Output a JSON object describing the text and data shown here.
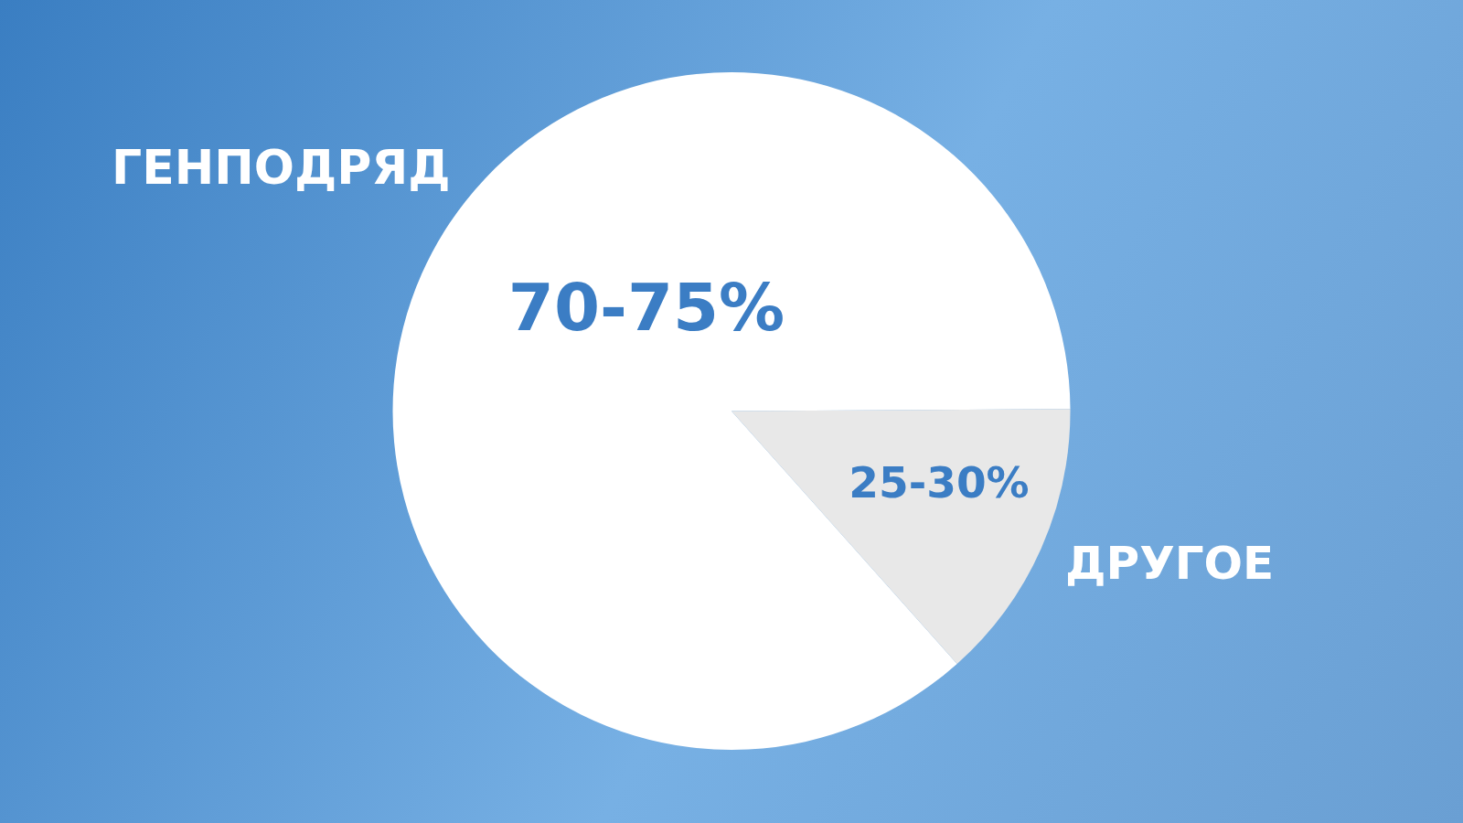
{
  "chart_data": {
    "type": "pie",
    "categories": [
      "ГЕНПОДРЯД",
      "ДРУГОЕ"
    ],
    "values": [
      86.5,
      13.5
    ],
    "colors": [
      "#ffffff",
      "#e8e8e8"
    ],
    "annotations": [
      "70-75%",
      "25-30%"
    ]
  }
}
